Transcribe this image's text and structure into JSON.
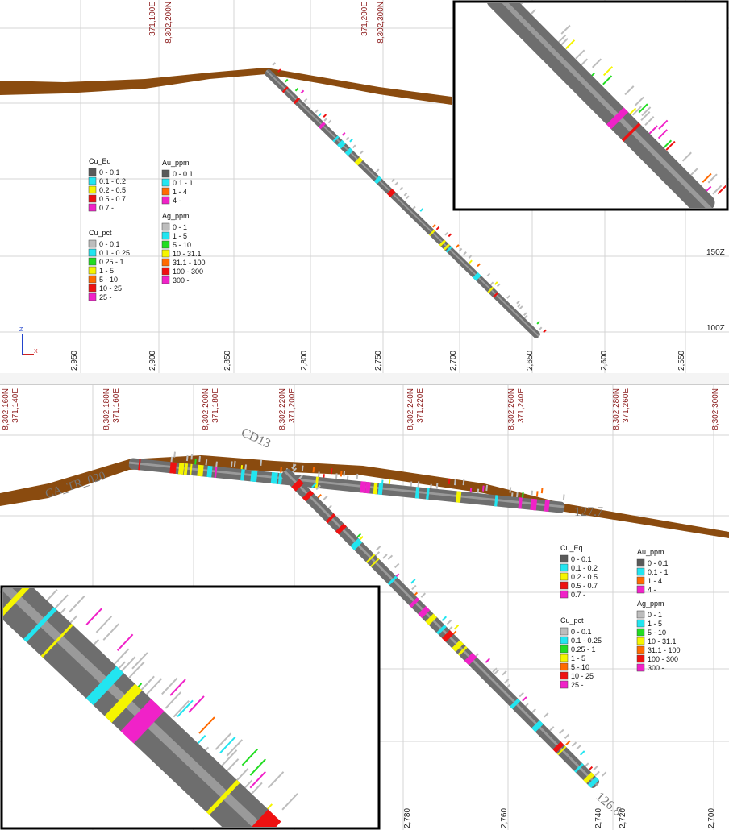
{
  "top_view": {
    "north_east_labels": [
      "371,100E",
      "8,302,200N",
      "371,200E",
      "8,302,300N"
    ],
    "distance_labels": [
      "2,950",
      "2,900",
      "2,850",
      "2,800",
      "2,750",
      "2,700",
      "2,650",
      "2,600",
      "2,550"
    ],
    "elevation_labels": [
      "150Z",
      "100Z"
    ],
    "axis_labels": [
      "Z",
      "X"
    ]
  },
  "bottom_view": {
    "north_east_labels": [
      "8,302,160N",
      "371,140E",
      "8,302,180N",
      "371,160E",
      "8,302,200N",
      "371,180E",
      "8,302,220N",
      "371,200E",
      "8,302,240N",
      "371,220E",
      "8,302,260N",
      "371,240E",
      "8,302,280N",
      "371,260E",
      "8,302,300N"
    ],
    "distance_labels": [
      "2,780",
      "2,760",
      "2,740",
      "2,720",
      "2,700"
    ],
    "hole_labels": [
      "CD13",
      "CA_TR_020",
      "127.7",
      "126.8"
    ]
  },
  "legends": [
    {
      "title": "Cu_Eq",
      "entries": [
        {
          "label": "0 - 0.1",
          "color": "#5a5a5a"
        },
        {
          "label": "0.1 - 0.2",
          "color": "#22e5f0"
        },
        {
          "label": "0.2 - 0.5",
          "color": "#f5f500"
        },
        {
          "label": "0.5 - 0.7",
          "color": "#ee1111"
        },
        {
          "label": "0.7 -",
          "color": "#f022c8"
        }
      ]
    },
    {
      "title": "Cu_pct",
      "entries": [
        {
          "label": "0 - 0.1",
          "color": "#bdbdbd"
        },
        {
          "label": "0.1 - 0.25",
          "color": "#22e5f0"
        },
        {
          "label": "0.25 - 1",
          "color": "#22dd22"
        },
        {
          "label": "1 - 5",
          "color": "#f5f500"
        },
        {
          "label": "5 - 10",
          "color": "#ff6a00"
        },
        {
          "label": "10 - 25",
          "color": "#ee1111"
        },
        {
          "label": "25 -",
          "color": "#f022c8"
        }
      ]
    },
    {
      "title": "Au_ppm",
      "entries": [
        {
          "label": "0 - 0.1",
          "color": "#5a5a5a"
        },
        {
          "label": "0.1 - 1",
          "color": "#22e5f0"
        },
        {
          "label": "1 - 4",
          "color": "#ff6a00"
        },
        {
          "label": "4 -",
          "color": "#f022c8"
        }
      ]
    },
    {
      "title": "Ag_ppm",
      "entries": [
        {
          "label": "0 - 1",
          "color": "#bdbdbd"
        },
        {
          "label": "1 - 5",
          "color": "#22e5f0"
        },
        {
          "label": "5 - 10",
          "color": "#22dd22"
        },
        {
          "label": "10 - 31.1",
          "color": "#f5f500"
        },
        {
          "label": "31.1 - 100",
          "color": "#ff6a00"
        },
        {
          "label": "100 - 300",
          "color": "#ee1111"
        },
        {
          "label": "300 -",
          "color": "#f022c8"
        }
      ]
    }
  ]
}
